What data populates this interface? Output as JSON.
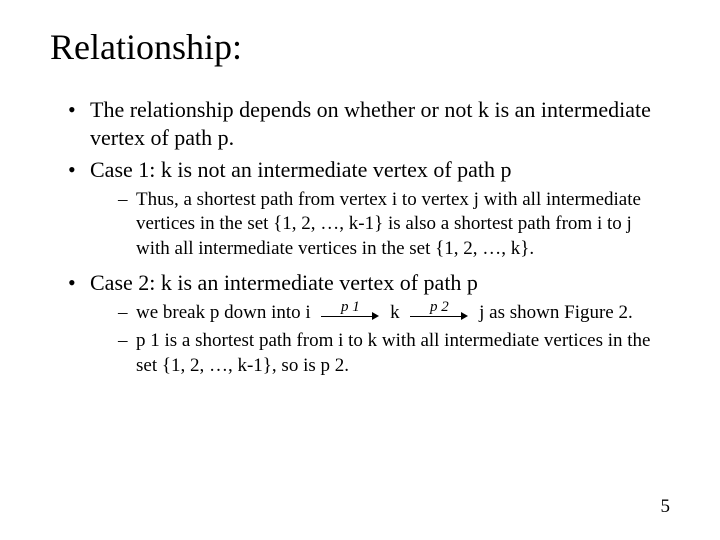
{
  "title": "Relationship:",
  "bullets": {
    "b1": "The relationship depends on whether or not k is an intermediate vertex of path p.",
    "b2": "Case 1:  k is not an intermediate vertex of path p",
    "b2_sub1": "Thus, a shortest path from vertex i to vertex j with all intermediate vertices in the set {1, 2, …, k-1} is also a shortest path from i to j with all intermediate vertices in the set {1, 2, …, k}.",
    "b3": "Case 2:  k is an intermediate vertex of path p",
    "b3_sub1_pre": "we break p down into  i",
    "b3_sub1_mid": "k",
    "b3_sub1_post": "j  as shown Figure 2.",
    "b3_sub2": "p 1 is a shortest path from i to k with all intermediate vertices in the set {1, 2, …, k-1}, so is p 2."
  },
  "arrows": {
    "p1_label": "p 1",
    "p2_label": "p 2"
  },
  "page_number": "5",
  "style": {
    "background_color": "#ffffff",
    "text_color": "#000000",
    "title_fontsize_pt": 36,
    "body_fontsize_pt": 22,
    "sub_fontsize_pt": 19,
    "font_family": "Times New Roman"
  }
}
